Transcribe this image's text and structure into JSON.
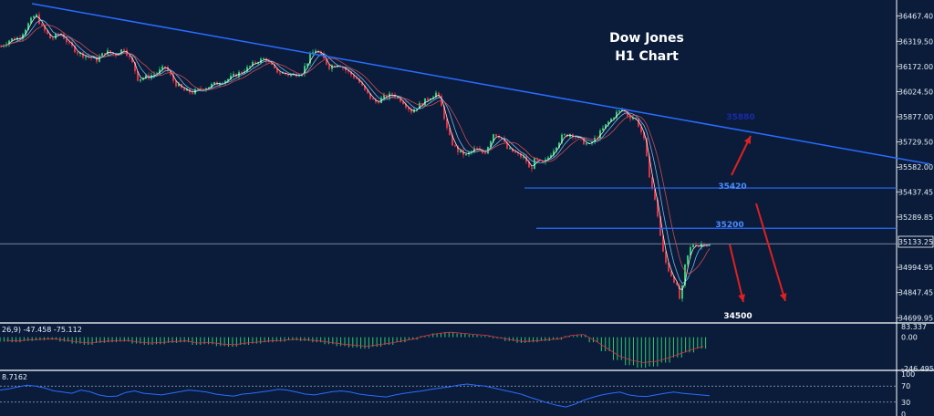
{
  "chart_data": [
    {
      "type": "candlestick",
      "title_line1": "Dow Jones",
      "title_line2": "H1 Chart",
      "ylim": [
        34680,
        36540
      ],
      "y_ticks": [
        "36467.40",
        "36319.50",
        "36172.00",
        "36024.50",
        "35877.00",
        "35729.50",
        "35582.00",
        "35437.45",
        "35289.85",
        "35133.25",
        "34994.95",
        "34847.45",
        "34699.95"
      ],
      "current_price": "35133.25",
      "price_path": [
        [
          0,
          36290
        ],
        [
          10,
          36330
        ],
        [
          20,
          36340
        ],
        [
          30,
          36420
        ],
        [
          38,
          36480
        ],
        [
          45,
          36400
        ],
        [
          55,
          36330
        ],
        [
          65,
          36370
        ],
        [
          75,
          36300
        ],
        [
          85,
          36250
        ],
        [
          95,
          36230
        ],
        [
          105,
          36210
        ],
        [
          115,
          36260
        ],
        [
          125,
          36240
        ],
        [
          135,
          36280
        ],
        [
          145,
          36180
        ],
        [
          150,
          36100
        ],
        [
          160,
          36110
        ],
        [
          170,
          36130
        ],
        [
          180,
          36170
        ],
        [
          190,
          36080
        ],
        [
          200,
          36030
        ],
        [
          210,
          36020
        ],
        [
          220,
          36040
        ],
        [
          230,
          36060
        ],
        [
          240,
          36080
        ],
        [
          250,
          36100
        ],
        [
          260,
          36130
        ],
        [
          270,
          36160
        ],
        [
          280,
          36200
        ],
        [
          290,
          36220
        ],
        [
          300,
          36150
        ],
        [
          310,
          36130
        ],
        [
          320,
          36120
        ],
        [
          330,
          36140
        ],
        [
          340,
          36240
        ],
        [
          345,
          36270
        ],
        [
          350,
          36240
        ],
        [
          360,
          36170
        ],
        [
          370,
          36190
        ],
        [
          380,
          36140
        ],
        [
          390,
          36100
        ],
        [
          400,
          36020
        ],
        [
          410,
          35960
        ],
        [
          420,
          35990
        ],
        [
          430,
          36010
        ],
        [
          440,
          35970
        ],
        [
          450,
          35910
        ],
        [
          460,
          35950
        ],
        [
          470,
          35990
        ],
        [
          478,
          36020
        ],
        [
          485,
          35900
        ],
        [
          490,
          35780
        ],
        [
          495,
          35720
        ],
        [
          500,
          35680
        ],
        [
          510,
          35650
        ],
        [
          520,
          35690
        ],
        [
          530,
          35660
        ],
        [
          540,
          35780
        ],
        [
          548,
          35760
        ],
        [
          555,
          35690
        ],
        [
          565,
          35660
        ],
        [
          575,
          35630
        ],
        [
          580,
          35560
        ],
        [
          585,
          35620
        ],
        [
          595,
          35600
        ],
        [
          605,
          35680
        ],
        [
          615,
          35760
        ],
        [
          625,
          35780
        ],
        [
          635,
          35740
        ],
        [
          645,
          35710
        ],
        [
          655,
          35770
        ],
        [
          665,
          35840
        ],
        [
          675,
          35900
        ],
        [
          682,
          35920
        ],
        [
          688,
          35880
        ],
        [
          695,
          35870
        ],
        [
          700,
          35820
        ],
        [
          705,
          35740
        ],
        [
          710,
          35560
        ],
        [
          715,
          35440
        ],
        [
          720,
          35300
        ],
        [
          725,
          35100
        ],
        [
          730,
          35000
        ],
        [
          735,
          34950
        ],
        [
          740,
          34900
        ],
        [
          745,
          34790
        ],
        [
          750,
          35000
        ],
        [
          755,
          35100
        ],
        [
          760,
          35140
        ],
        [
          765,
          35120
        ],
        [
          770,
          35140
        ],
        [
          778,
          35120
        ]
      ],
      "trendline": {
        "from": [
          35,
          36540
        ],
        "to": [
          1020,
          35600
        ]
      },
      "levels": [
        {
          "value": 35460,
          "label": "35420",
          "x0": 575
        },
        {
          "value": 35224,
          "label": "35200",
          "x0": 588
        },
        {
          "value": 35875,
          "label": "35880",
          "x0": null
        }
      ],
      "target_label": "34500",
      "arrows": [
        "up-right",
        "down-right",
        "down-right-far"
      ],
      "moving_averages": [
        "#ffffff",
        "#7ec8ff",
        "#e05050"
      ]
    },
    {
      "type": "histogram",
      "name": "MACD",
      "header": "26,9) -47.458 -75.112",
      "ylim": [
        -246.495,
        83.337
      ],
      "y_ticks": [
        "83.337",
        "0.00",
        "-246.495"
      ],
      "values": [
        -35,
        -40,
        -30,
        -25,
        -20,
        -35,
        -50,
        -60,
        -45,
        -40,
        -35,
        -50,
        -60,
        -55,
        -45,
        -40,
        -60,
        -55,
        -70,
        -75,
        -60,
        -50,
        -40,
        -35,
        -25,
        -30,
        -40,
        -55,
        -70,
        -80,
        -90,
        -75,
        -60,
        -40,
        -20,
        10,
        30,
        40,
        30,
        20,
        10,
        -10,
        -30,
        -45,
        -40,
        -30,
        -20,
        10,
        20,
        -40,
        -110,
        -180,
        -220,
        -240,
        -230,
        -200,
        -160,
        -120,
        -90
      ]
    },
    {
      "type": "line",
      "name": "RSI",
      "header": "8.7162",
      "ylim": [
        0,
        100
      ],
      "y_ticks": [
        "100",
        "70",
        "30",
        "0"
      ],
      "levels": [
        70,
        30
      ],
      "values": [
        60,
        63,
        68,
        72,
        70,
        65,
        58,
        55,
        52,
        60,
        56,
        48,
        44,
        45,
        54,
        58,
        52,
        50,
        48,
        52,
        56,
        60,
        58,
        55,
        50,
        47,
        45,
        50,
        52,
        55,
        58,
        62,
        60,
        55,
        50,
        48,
        52,
        56,
        58,
        55,
        50,
        47,
        45,
        43,
        48,
        52,
        55,
        58,
        62,
        65,
        68,
        72,
        75,
        72,
        70,
        65,
        60,
        55,
        50,
        42,
        35,
        28,
        22,
        18,
        25,
        35,
        42,
        48,
        52,
        55,
        48,
        45,
        44,
        48,
        52,
        55,
        52,
        50,
        48,
        46
      ]
    }
  ]
}
